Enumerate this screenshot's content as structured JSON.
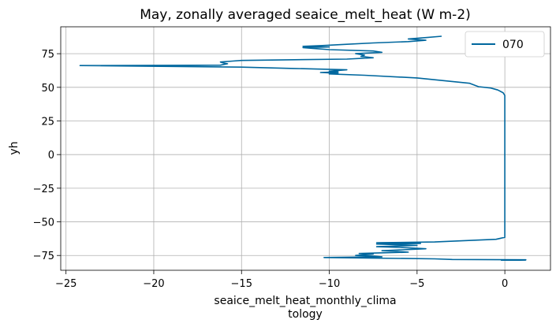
{
  "chart_data": {
    "type": "line",
    "title": "May, zonally averaged seaice_melt_heat (W m-2)",
    "xlabel_line1": "seaice_melt_heat_monthly_clima",
    "xlabel_line2": "tology",
    "ylabel": "yh",
    "xlim": [
      -25.3,
      2.6
    ],
    "ylim": [
      -86,
      95
    ],
    "xticks": [
      -25,
      -20,
      -15,
      -10,
      -5,
      0
    ],
    "xtick_labels": [
      "−25",
      "−20",
      "−15",
      "−10",
      "−5",
      "0"
    ],
    "yticks": [
      -75,
      -50,
      -25,
      0,
      25,
      50,
      75
    ],
    "ytick_labels": [
      "−75",
      "−50",
      "−25",
      "0",
      "25",
      "50",
      "75"
    ],
    "grid": true,
    "legend_position": "top-right",
    "series": [
      {
        "name": "070",
        "color": "#00679e",
        "points": [
          [
            1.2,
            -78.5
          ],
          [
            -0.2,
            -78.5
          ],
          [
            1.2,
            -78.2
          ],
          [
            -3.0,
            -78.0
          ],
          [
            -4.0,
            -77.5
          ],
          [
            -10.3,
            -76.5
          ],
          [
            -7.0,
            -76.0
          ],
          [
            -7.5,
            -75.5
          ],
          [
            -8.5,
            -75.0
          ],
          [
            -7.5,
            -74.0
          ],
          [
            -8.3,
            -73.5
          ],
          [
            -5.5,
            -72.5
          ],
          [
            -7.0,
            -71.5
          ],
          [
            -4.5,
            -70.0
          ],
          [
            -6.0,
            -69.0
          ],
          [
            -7.3,
            -68.5
          ],
          [
            -5.0,
            -67.5
          ],
          [
            -7.3,
            -66.5
          ],
          [
            -4.8,
            -66.0
          ],
          [
            -7.3,
            -65.5
          ],
          [
            -4.0,
            -65.0
          ],
          [
            -0.5,
            -63.0
          ],
          [
            0.0,
            -61.5
          ],
          [
            0.0,
            -60.0
          ],
          [
            0.0,
            0.0
          ],
          [
            0.0,
            44.0
          ],
          [
            -0.1,
            46.0
          ],
          [
            -0.4,
            48.0
          ],
          [
            -0.8,
            49.5
          ],
          [
            -1.5,
            50.5
          ],
          [
            -2.0,
            53.0
          ],
          [
            -3.5,
            55.0
          ],
          [
            -5.0,
            57.0
          ],
          [
            -8.0,
            59.0
          ],
          [
            -10.0,
            60.0
          ],
          [
            -9.5,
            60.5
          ],
          [
            -10.5,
            61.0
          ],
          [
            -9.5,
            61.5
          ],
          [
            -10.0,
            62.0
          ],
          [
            -9.0,
            63.0
          ],
          [
            -12.0,
            64.0
          ],
          [
            -15.0,
            65.0
          ],
          [
            -24.2,
            66.2
          ],
          [
            -16.2,
            66.5
          ],
          [
            -15.8,
            67.5
          ],
          [
            -16.0,
            68.0
          ],
          [
            -16.2,
            68.8
          ],
          [
            -15.5,
            69.5
          ],
          [
            -15.0,
            70.0
          ],
          [
            -12.0,
            70.5
          ],
          [
            -9.0,
            71.0
          ],
          [
            -7.5,
            72.0
          ],
          [
            -8.2,
            73.0
          ],
          [
            -8.0,
            74.0
          ],
          [
            -8.5,
            75.0
          ],
          [
            -7.0,
            76.0
          ],
          [
            -7.5,
            77.0
          ],
          [
            -10.0,
            78.0
          ],
          [
            -11.0,
            79.0
          ],
          [
            -11.5,
            79.5
          ],
          [
            -10.0,
            80.0
          ],
          [
            -11.5,
            80.5
          ],
          [
            -10.5,
            81.0
          ],
          [
            -9.0,
            82.0
          ],
          [
            -7.5,
            83.0
          ],
          [
            -5.5,
            84.0
          ],
          [
            -4.5,
            85.0
          ],
          [
            -5.5,
            86.0
          ],
          [
            -4.5,
            87.0
          ],
          [
            -3.6,
            88.0
          ]
        ]
      }
    ]
  }
}
